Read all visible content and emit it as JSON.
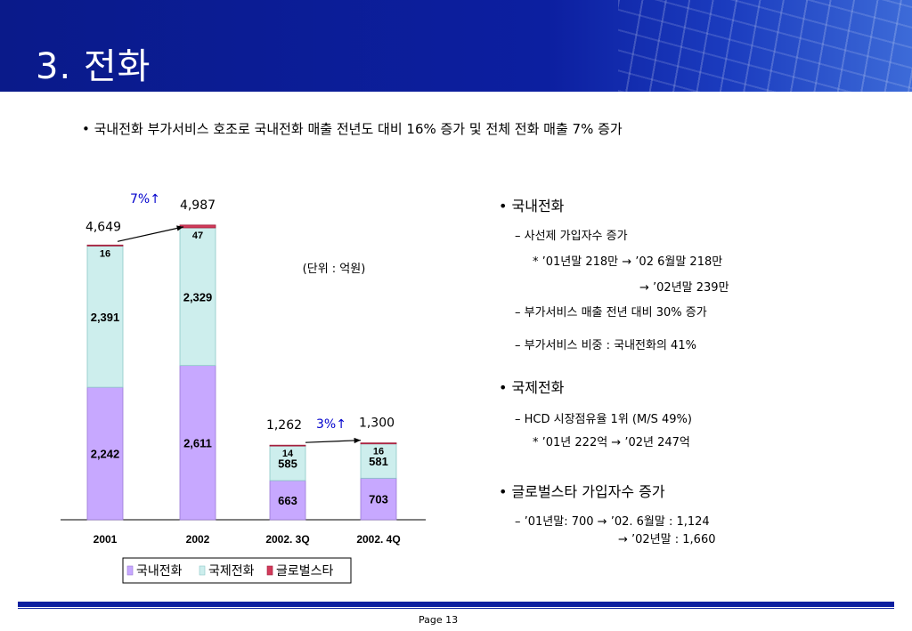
{
  "title": "3. 전화",
  "headline": "•  국내전화 부가서비스 호조로 국내전화 매출 전년도 대비 16% 증가 및 전체 전화 매출 7% 증가",
  "unit_note": "(단위 : 억원)",
  "growth_labels": [
    "7%↑",
    "3%↑"
  ],
  "colors": {
    "domestic": "#c7a8ff",
    "international": "#cdeeed",
    "globalstar": "#d23a5a",
    "header": "#0c1fa0",
    "growth_text": "#0000cc"
  },
  "chart_data": {
    "type": "bar",
    "stacked": true,
    "categories": [
      "2001",
      "2002",
      "2002. 3Q",
      "2002. 4Q"
    ],
    "series": [
      {
        "name": "국내전화",
        "values": [
          2242,
          2611,
          663,
          703
        ]
      },
      {
        "name": "국제전화",
        "values": [
          2391,
          2329,
          585,
          581
        ]
      },
      {
        "name": "글로벌스타",
        "values": [
          16,
          47,
          14,
          16
        ]
      }
    ],
    "totals": [
      "4,649",
      "4,987",
      "1,262",
      "1,300"
    ],
    "segment_labels": [
      [
        "2,242",
        "2,391",
        "16"
      ],
      [
        "2,611",
        "2,329",
        "47"
      ],
      [
        "663",
        "585",
        "14"
      ],
      [
        "703",
        "581",
        "16"
      ]
    ],
    "legend": [
      "국내전화",
      "국제전화",
      "글로벌스타"
    ],
    "legend_position": "bottom",
    "grid": false
  },
  "right_panel": {
    "domestic_head": "• 국내전화",
    "domestic_l1": "–  사선제 가입자수 증가",
    "domestic_l2": "* ’01년말 218만 → ’02 6월말 218만",
    "domestic_l3": "→ ’02년말 239만",
    "domestic_l4": "–  부가서비스 매출 전년 대비 30% 증가",
    "domestic_l5": "–  부가서비스 비중  : 국내전화의 41%",
    "intl_head": "• 국제전화",
    "intl_l1": "– HCD 시장점유율 1위 (M/S 49%)",
    "intl_l2": "* ’01년 222억 → ’02년 247억",
    "gs_head": "• 글로벌스타 가입자수 증가",
    "gs_l1": "– ’01년말: 700  →  ’02. 6월말 : 1,124",
    "gs_l2": "→  ’02년말     : 1,660"
  },
  "footer": {
    "page": "Page 13"
  }
}
